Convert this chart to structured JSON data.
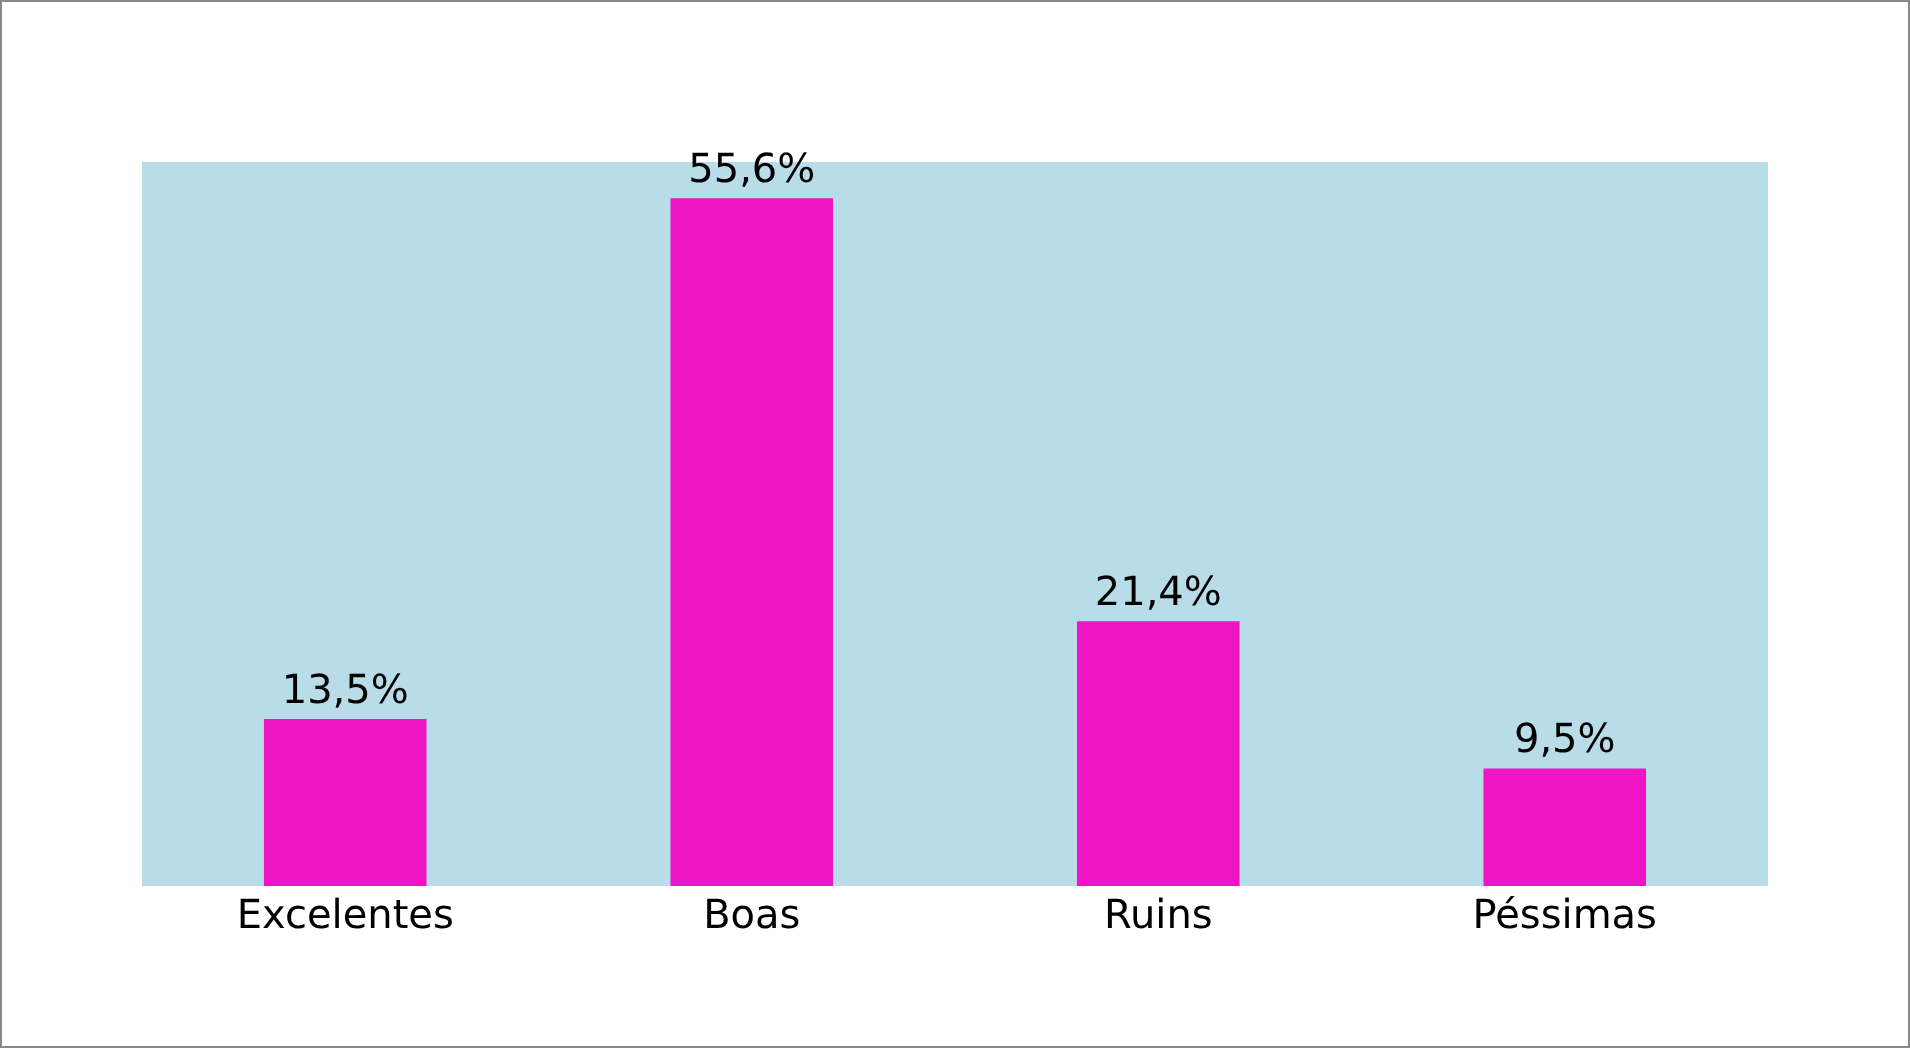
{
  "chart_data": {
    "type": "bar",
    "categories": [
      "Excelentes",
      "Boas",
      "Ruins",
      "Péssimas"
    ],
    "values": [
      13.5,
      55.6,
      21.4,
      9.5
    ],
    "value_labels": [
      "13,5%",
      "55,6%",
      "21,4%",
      "9,5%"
    ],
    "color": "#ee16c4"
  }
}
